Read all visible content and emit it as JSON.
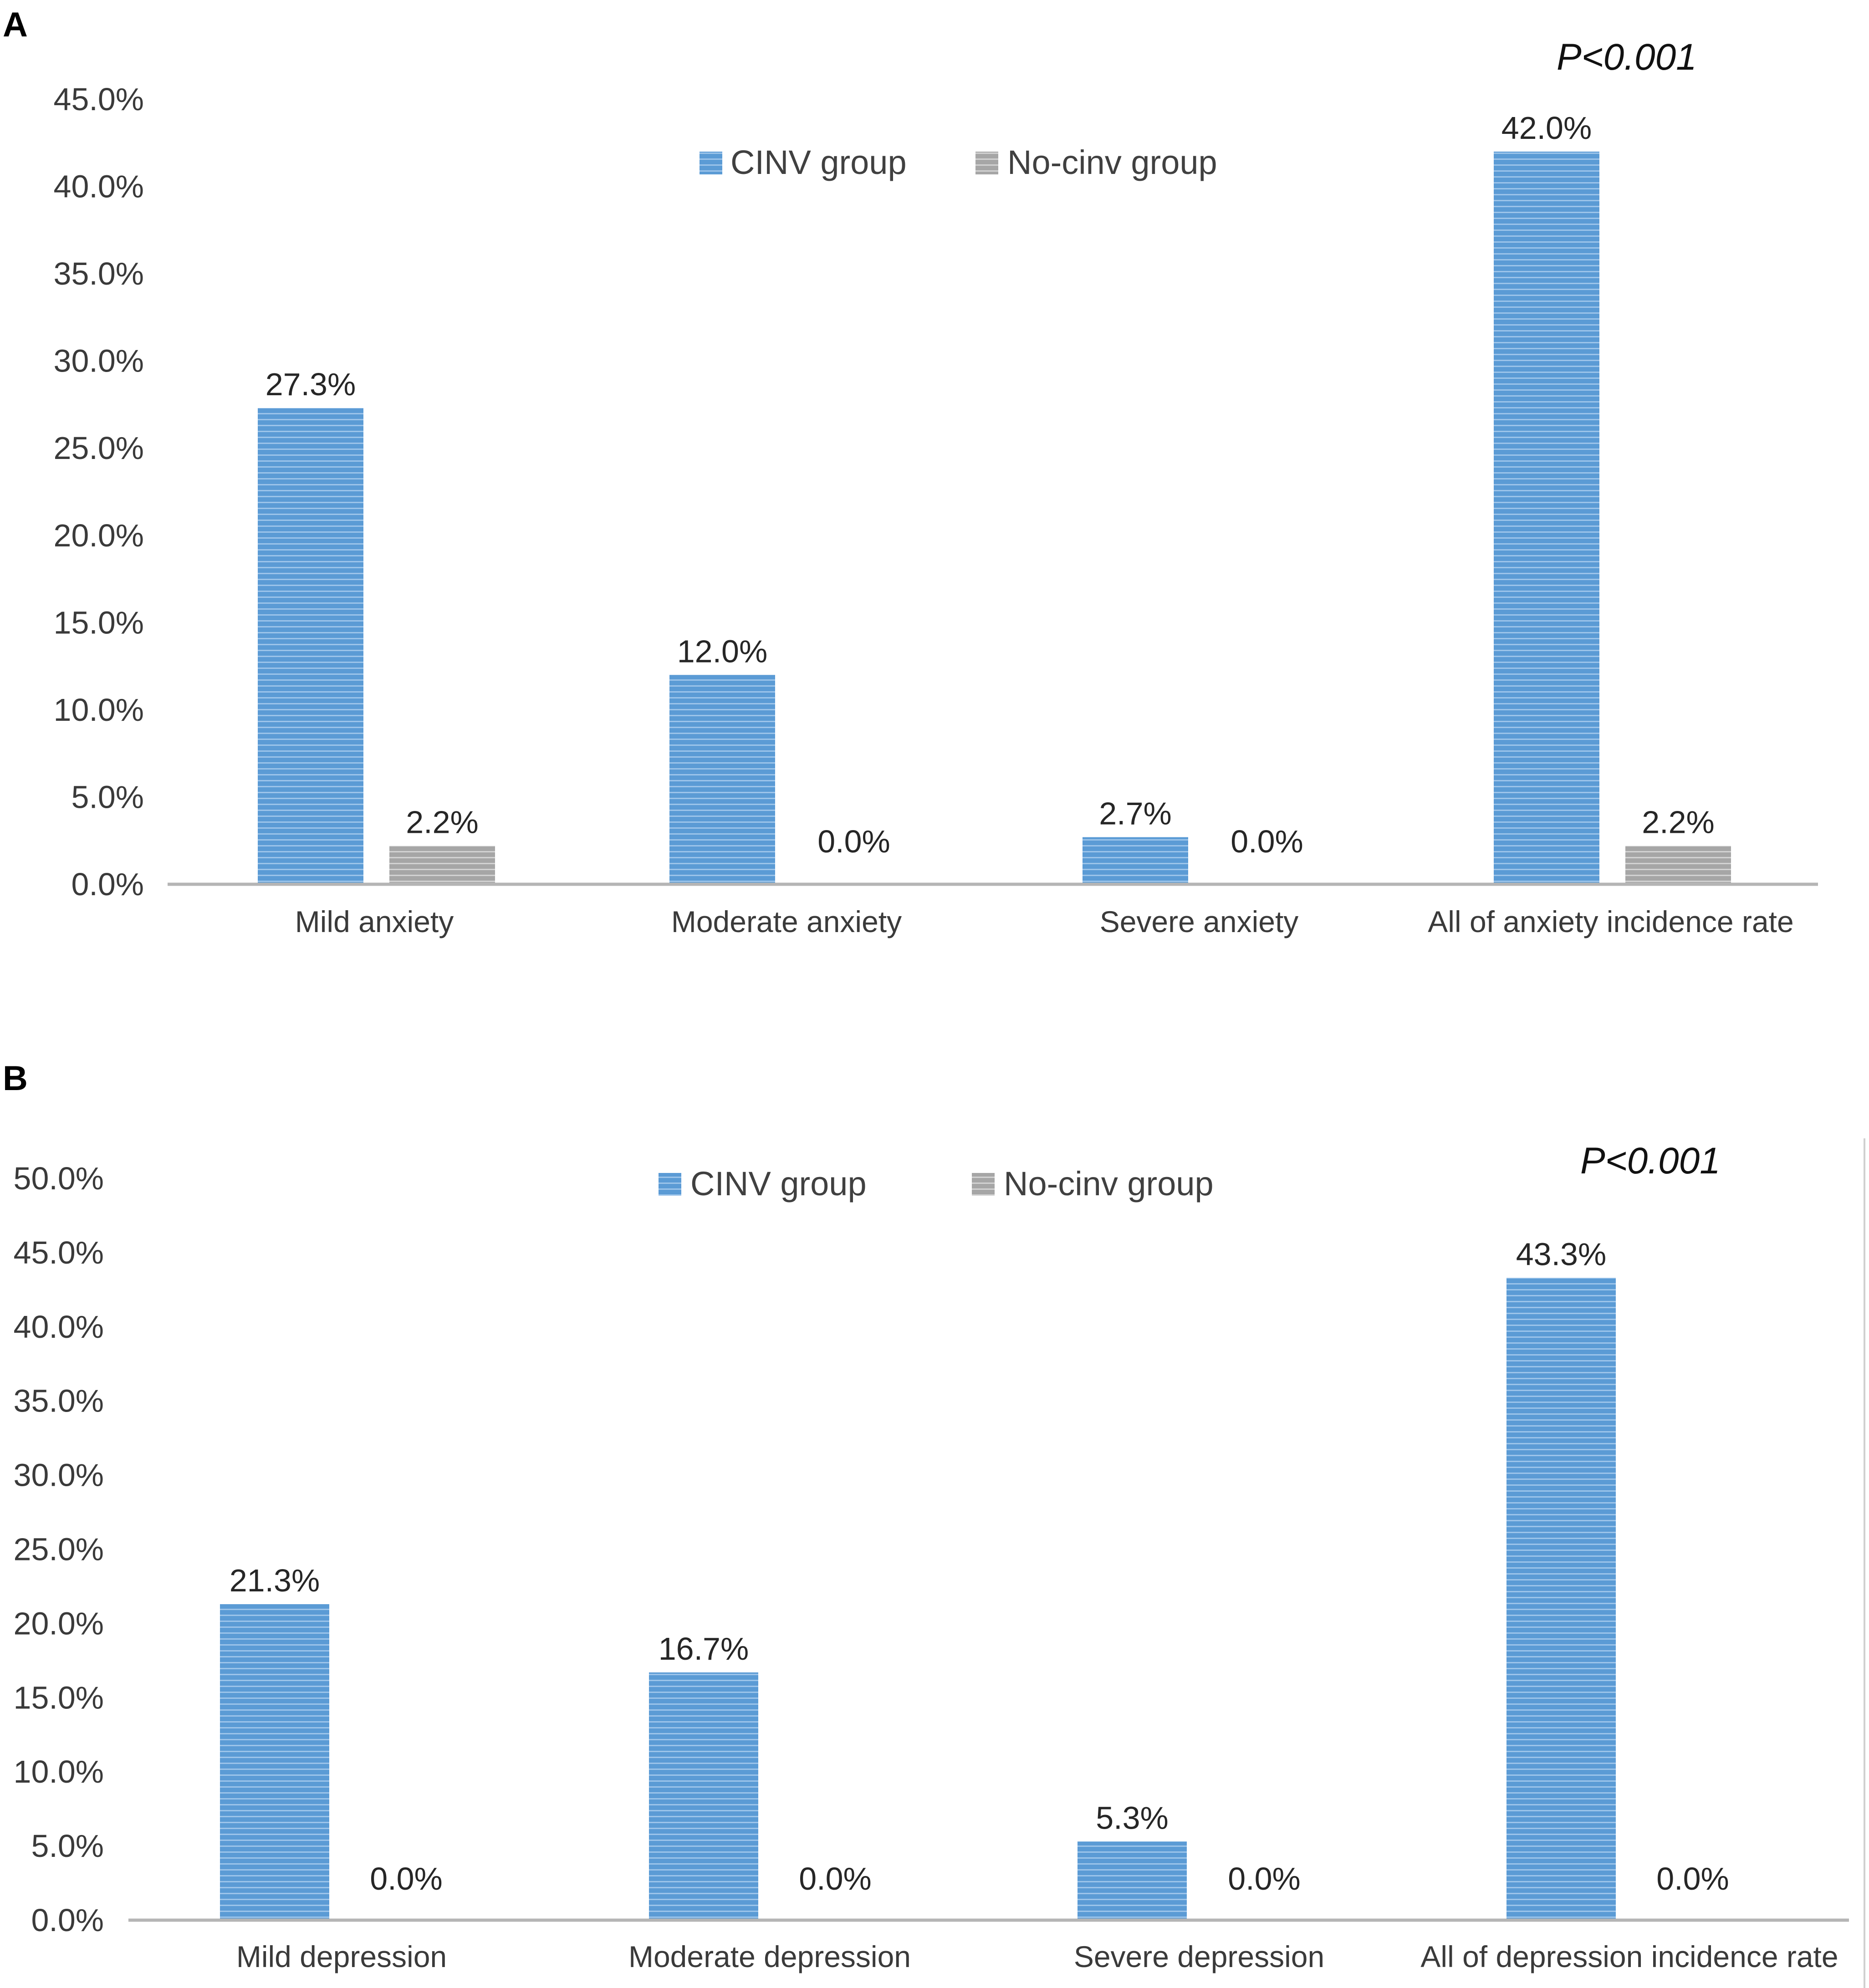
{
  "figure": {
    "colors": {
      "cinv": "#5b9bd5",
      "no_cinv": "#a6a6a6",
      "axis": "#b5b5b5"
    }
  },
  "chart_data": [
    {
      "panel": "A",
      "type": "bar",
      "categories": [
        "Mild anxiety",
        "Moderate anxiety",
        "Severe anxiety",
        "All of anxiety incidence rate"
      ],
      "series": [
        {
          "name": "CINV group",
          "values": [
            27.3,
            12.0,
            2.7,
            42.0
          ],
          "labels": [
            "27.3%",
            "12.0%",
            "2.7%",
            "42.0%"
          ]
        },
        {
          "name": "No-cinv group",
          "values": [
            2.2,
            0.0,
            0.0,
            2.2
          ],
          "labels": [
            "2.2%",
            "0.0%",
            "0.0%",
            "2.2%"
          ]
        }
      ],
      "ylim": [
        0,
        45
      ],
      "yticks": [
        "0.0%",
        "5.0%",
        "10.0%",
        "15.0%",
        "20.0%",
        "25.0%",
        "30.0%",
        "35.0%",
        "40.0%",
        "45.0%"
      ],
      "legend_position": "top-center",
      "annotation": "P<0.001",
      "grid": false
    },
    {
      "panel": "B",
      "type": "bar",
      "categories": [
        "Mild depression",
        "Moderate depression",
        "Severe depression",
        "All of depression incidence rate"
      ],
      "series": [
        {
          "name": "CINV group",
          "values": [
            21.3,
            16.7,
            5.3,
            43.3
          ],
          "labels": [
            "21.3%",
            "16.7%",
            "5.3%",
            "43.3%"
          ]
        },
        {
          "name": "No-cinv group",
          "values": [
            0.0,
            0.0,
            0.0,
            0.0
          ],
          "labels": [
            "0.0%",
            "0.0%",
            "0.0%",
            "0.0%"
          ]
        }
      ],
      "ylim": [
        0,
        50
      ],
      "yticks": [
        "0.0%",
        "5.0%",
        "10.0%",
        "15.0%",
        "20.0%",
        "25.0%",
        "30.0%",
        "35.0%",
        "40.0%",
        "45.0%",
        "50.0%"
      ],
      "legend_position": "top-center",
      "annotation": "P<0.001",
      "grid": false
    }
  ]
}
